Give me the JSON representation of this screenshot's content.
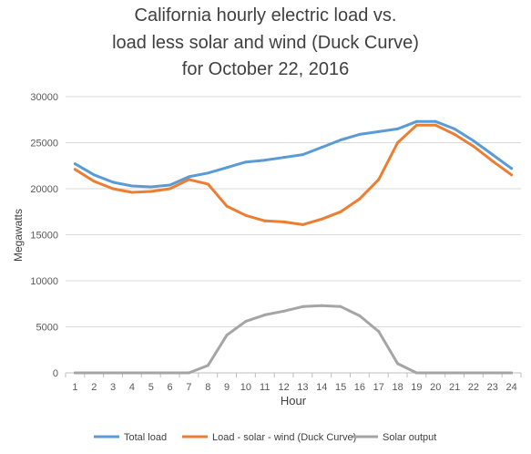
{
  "chart_data": {
    "type": "line",
    "title_lines": [
      "California hourly electric load vs.",
      "load less solar and wind (Duck Curve)",
      "for October 22, 2016"
    ],
    "xlabel": "Hour",
    "ylabel": "Megawatts",
    "x": [
      1,
      2,
      3,
      4,
      5,
      6,
      7,
      8,
      9,
      10,
      11,
      12,
      13,
      14,
      15,
      16,
      17,
      18,
      19,
      20,
      21,
      22,
      23,
      24
    ],
    "ylim": [
      0,
      30000
    ],
    "yticks": [
      0,
      5000,
      10000,
      15000,
      20000,
      25000,
      30000
    ],
    "ytick_labels": [
      "0",
      "5000",
      "10000",
      "15000",
      "20000",
      "25000",
      "30000"
    ],
    "grid": "horizontal",
    "legend_position": "bottom",
    "series": [
      {
        "name": "Total load",
        "color": "#5b9bd5",
        "values": [
          22700,
          21500,
          20700,
          20300,
          20200,
          20400,
          21300,
          21700,
          22300,
          22900,
          23100,
          23400,
          23700,
          24500,
          25300,
          25900,
          26200,
          26500,
          27300,
          27300,
          26500,
          25200,
          23700,
          22200
        ]
      },
      {
        "name": "Load - solar - wind (Duck Curve)",
        "color": "#ed7d31",
        "values": [
          22100,
          20800,
          20000,
          19600,
          19700,
          20000,
          21000,
          20500,
          18100,
          17100,
          16500,
          16400,
          16100,
          16700,
          17500,
          18900,
          21000,
          25000,
          26900,
          26900,
          25900,
          24600,
          23000,
          21500
        ]
      },
      {
        "name": "Solar output",
        "color": "#a5a5a5",
        "values": [
          0,
          0,
          0,
          0,
          0,
          0,
          0,
          800,
          4100,
          5600,
          6300,
          6700,
          7200,
          7300,
          7200,
          6200,
          4500,
          1000,
          0,
          0,
          0,
          0,
          0,
          0
        ]
      }
    ]
  }
}
